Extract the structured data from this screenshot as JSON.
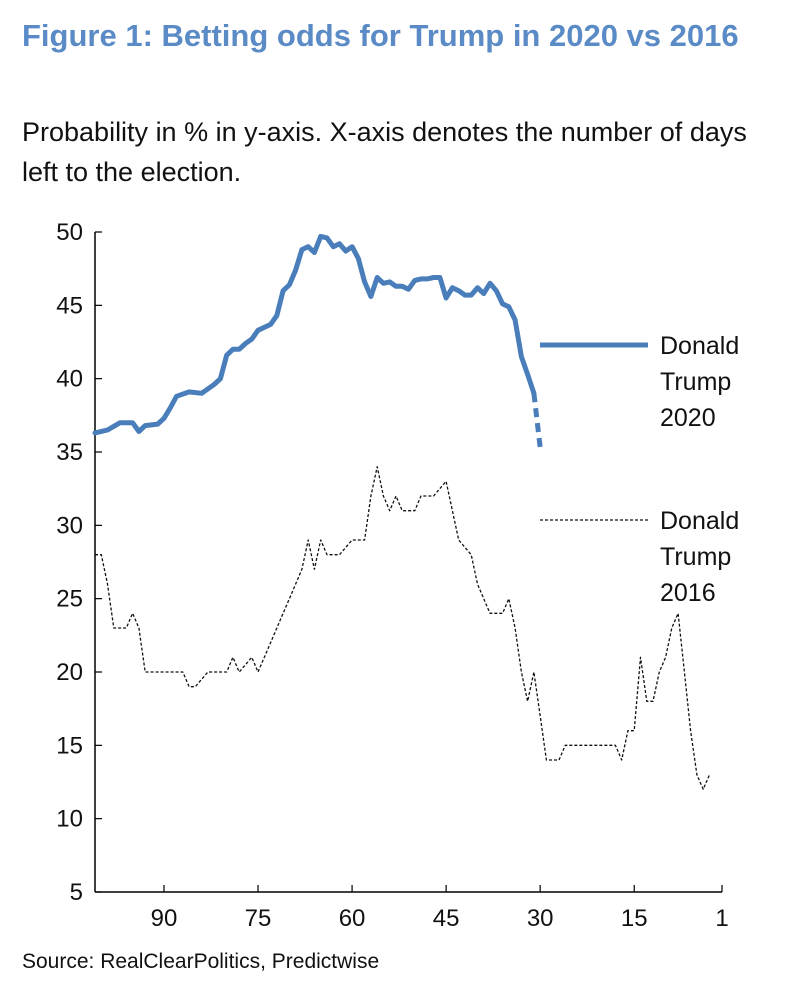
{
  "header": {
    "title": "Figure 1: Betting odds for Trump in 2020 vs 2016",
    "subtitle": "Probability in % in y-axis. X-axis denotes the number of days left to the election."
  },
  "footer": {
    "source": "Source:  RealClearPolitics, Predictwise"
  },
  "colors": {
    "title": "#5a8bc6",
    "series_2020": "#4a7ebb",
    "series_2016": "#111111",
    "axis": "#000000"
  },
  "chart_data": {
    "type": "line",
    "title": "Figure 1: Betting odds for Trump in 2020 vs 2016",
    "xlabel": "",
    "ylabel": "",
    "x_reversed": true,
    "xlim": [
      101,
      1
    ],
    "ylim": [
      5,
      50
    ],
    "xticks": [
      90,
      75,
      60,
      45,
      30,
      15,
      1
    ],
    "yticks": [
      50,
      45,
      40,
      35,
      30,
      25,
      20,
      15,
      10,
      5
    ],
    "grid": false,
    "legend": "right, labels beside lines",
    "series": [
      {
        "name": "Donald Trump 2020",
        "legend_lines": [
          "Donald",
          "Trump",
          "2020"
        ],
        "style": "solid, thick, blue; last segment dashed",
        "dashed_from_x": 31,
        "points": [
          [
            101,
            36.3
          ],
          [
            99,
            36.5
          ],
          [
            97,
            37.0
          ],
          [
            95,
            37.0
          ],
          [
            94,
            36.4
          ],
          [
            93,
            36.8
          ],
          [
            91,
            36.9
          ],
          [
            90,
            37.3
          ],
          [
            89,
            38.0
          ],
          [
            88,
            38.8
          ],
          [
            86,
            39.1
          ],
          [
            84,
            39.0
          ],
          [
            82,
            39.6
          ],
          [
            81,
            40.0
          ],
          [
            80,
            41.6
          ],
          [
            79,
            42.0
          ],
          [
            78,
            42.0
          ],
          [
            77,
            42.4
          ],
          [
            76,
            42.7
          ],
          [
            75,
            43.3
          ],
          [
            73,
            43.7
          ],
          [
            72,
            44.3
          ],
          [
            71,
            46.0
          ],
          [
            70,
            46.4
          ],
          [
            69,
            47.4
          ],
          [
            68,
            48.8
          ],
          [
            67,
            49.0
          ],
          [
            66,
            48.6
          ],
          [
            65,
            49.7
          ],
          [
            64,
            49.6
          ],
          [
            63,
            49.0
          ],
          [
            62,
            49.2
          ],
          [
            61,
            48.7
          ],
          [
            60,
            49.0
          ],
          [
            59,
            48.2
          ],
          [
            58,
            46.6
          ],
          [
            57,
            45.6
          ],
          [
            56,
            46.9
          ],
          [
            55,
            46.5
          ],
          [
            54,
            46.6
          ],
          [
            53,
            46.3
          ],
          [
            52,
            46.3
          ],
          [
            51,
            46.1
          ],
          [
            50,
            46.7
          ],
          [
            49,
            46.8
          ],
          [
            48,
            46.8
          ],
          [
            47,
            46.9
          ],
          [
            46,
            46.9
          ],
          [
            45,
            45.5
          ],
          [
            44,
            46.2
          ],
          [
            43,
            46.0
          ],
          [
            42,
            45.7
          ],
          [
            41,
            45.7
          ],
          [
            40,
            46.2
          ],
          [
            39,
            45.8
          ],
          [
            38,
            46.5
          ],
          [
            37,
            46.0
          ],
          [
            36,
            45.1
          ],
          [
            35,
            44.9
          ],
          [
            34,
            44.0
          ],
          [
            33,
            41.5
          ],
          [
            32,
            40.3
          ],
          [
            31,
            39.0
          ],
          [
            30,
            35.3
          ]
        ]
      },
      {
        "name": "Donald Trump 2016",
        "legend_lines": [
          "Donald",
          "Trump",
          "2016"
        ],
        "style": "thin dashed black",
        "points": [
          [
            101,
            28
          ],
          [
            100,
            28
          ],
          [
            99,
            26
          ],
          [
            98,
            23
          ],
          [
            96,
            23
          ],
          [
            95,
            24
          ],
          [
            94,
            23
          ],
          [
            93,
            20
          ],
          [
            90,
            20
          ],
          [
            87,
            20
          ],
          [
            86,
            19
          ],
          [
            85,
            19
          ],
          [
            83,
            20
          ],
          [
            80,
            20
          ],
          [
            79,
            21
          ],
          [
            78,
            20
          ],
          [
            76,
            21
          ],
          [
            75,
            20
          ],
          [
            73,
            22
          ],
          [
            71,
            24
          ],
          [
            70,
            25
          ],
          [
            68,
            27
          ],
          [
            67,
            29
          ],
          [
            66,
            27
          ],
          [
            65,
            29
          ],
          [
            64,
            28
          ],
          [
            62,
            28
          ],
          [
            60,
            29
          ],
          [
            58,
            29
          ],
          [
            57,
            32
          ],
          [
            56,
            34
          ],
          [
            55,
            32
          ],
          [
            54,
            31
          ],
          [
            53,
            32
          ],
          [
            52,
            31
          ],
          [
            50,
            31
          ],
          [
            49,
            32
          ],
          [
            47,
            32
          ],
          [
            45,
            33
          ],
          [
            44,
            31
          ],
          [
            43,
            29
          ],
          [
            41,
            28
          ],
          [
            40,
            26
          ],
          [
            39,
            25
          ],
          [
            38,
            24
          ],
          [
            37,
            24
          ],
          [
            36,
            24
          ],
          [
            35,
            25
          ],
          [
            34,
            23
          ],
          [
            33,
            20
          ],
          [
            32,
            18
          ],
          [
            31,
            20
          ],
          [
            30,
            17
          ],
          [
            29,
            14
          ],
          [
            27,
            14
          ],
          [
            26,
            15
          ],
          [
            18,
            15
          ],
          [
            17,
            14
          ],
          [
            16,
            16
          ],
          [
            15,
            16
          ],
          [
            14,
            21
          ],
          [
            13,
            18
          ],
          [
            12,
            18
          ],
          [
            11,
            20
          ],
          [
            10,
            21
          ],
          [
            9,
            23
          ],
          [
            8,
            24
          ],
          [
            7,
            20
          ],
          [
            6,
            16
          ],
          [
            5,
            13
          ],
          [
            4,
            12
          ],
          [
            3,
            13
          ]
        ]
      }
    ]
  }
}
